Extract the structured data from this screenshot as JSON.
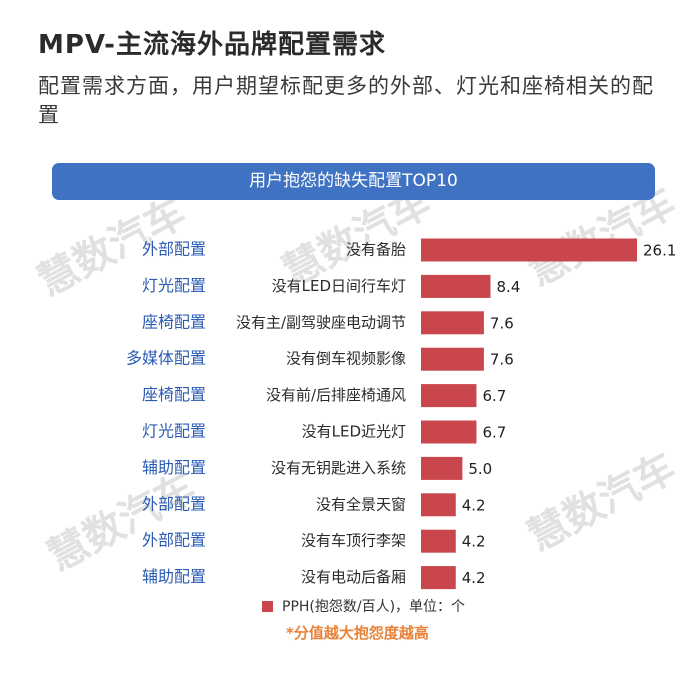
{
  "header": {
    "title": "MPV-主流海外品牌配置需求",
    "subtitle": "配置需求方面，用户期望标配更多的外部、灯光和座椅相关的配置"
  },
  "watermark_text": "慧数汽车",
  "chart_data": {
    "type": "bar",
    "orientation": "horizontal",
    "title": "用户抱怨的缺失配置TOP10",
    "groups": [
      "外部配置",
      "灯光配置",
      "座椅配置",
      "多媒体配置",
      "座椅配置",
      "灯光配置",
      "辅助配置",
      "外部配置",
      "外部配置",
      "辅助配置"
    ],
    "categories": [
      "没有备胎",
      "没有LED日间行车灯",
      "没有主/副驾驶座电动调节",
      "没有倒车视频影像",
      "没有前/后排座椅通风",
      "没有LED近光灯",
      "没有无钥匙进入系统",
      "没有全景天窗",
      "没有车顶行李架",
      "没有电动后备厢"
    ],
    "values": [
      26.1,
      8.4,
      7.6,
      7.6,
      6.7,
      6.7,
      5.0,
      4.2,
      4.2,
      4.2
    ],
    "value_labels": [
      "26.1",
      "8.4",
      "7.6",
      "7.6",
      "6.7",
      "6.7",
      "5.0",
      "4.2",
      "4.2",
      "4.2"
    ],
    "series": [
      {
        "name": "PPH(抱怨数/百人)，单位：个",
        "values": [
          26.1,
          8.4,
          7.6,
          7.6,
          6.7,
          6.7,
          5.0,
          4.2,
          4.2,
          4.2
        ]
      }
    ],
    "note": "*分值越大抱怨度越高",
    "colors": {
      "bar": "#c9464c",
      "group_label": "#2a5bb5",
      "banner": "#3f72c2",
      "note": "#e8833a"
    },
    "grid": false,
    "legend_position": "bottom"
  }
}
